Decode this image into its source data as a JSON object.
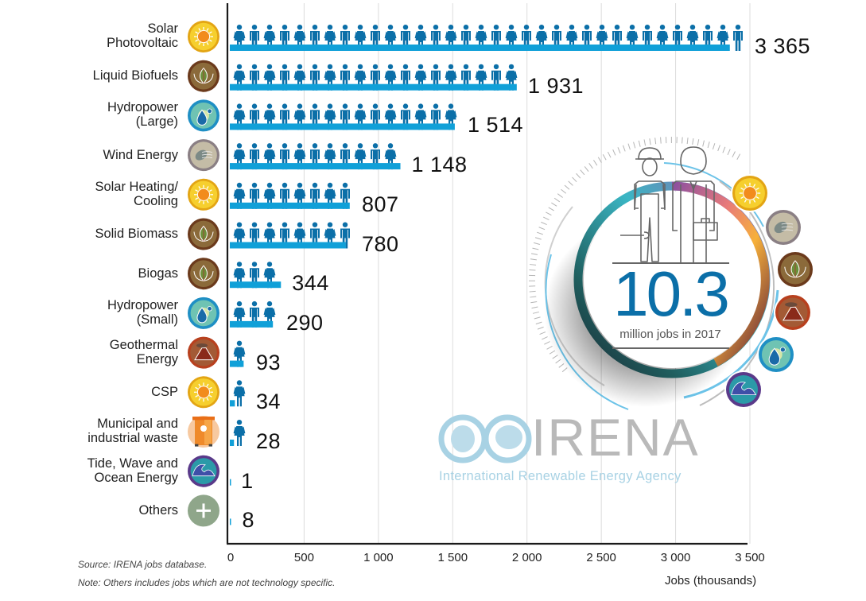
{
  "chart_data": {
    "type": "bar",
    "orientation": "horizontal",
    "title": "",
    "xlabel": "Jobs (thousands)",
    "ylabel": "",
    "xlim": [
      0,
      3500
    ],
    "xticks": [
      0,
      500,
      1000,
      1500,
      2000,
      2500,
      3000,
      3500
    ],
    "xtick_labels": [
      "0",
      "500",
      "1 000",
      "1 500",
      "2 000",
      "2 500",
      "3 000",
      "3 500"
    ],
    "grid": "vertical",
    "categories": [
      "Solar Photovoltaic",
      "Liquid Biofuels",
      "Hydropower (Large)",
      "Wind Energy",
      "Solar Heating/ Cooling",
      "Solid Biomass",
      "Biogas",
      "Hydropower (Small)",
      "Geothermal Energy",
      "CSP",
      "Municipal and industrial waste",
      "Tide, Wave and Ocean Energy",
      "Others"
    ],
    "values": [
      3365,
      1931,
      1514,
      1148,
      807,
      780,
      344,
      290,
      93,
      34,
      28,
      1,
      8
    ],
    "value_labels": [
      "3 365",
      "1 931",
      "1 514",
      "1 148",
      "807",
      "780",
      "344",
      "290",
      "93",
      "34",
      "28",
      "1",
      "8"
    ],
    "pictogram_unit": "one person icon ≈ 100 thousand jobs"
  },
  "rows": [
    {
      "label_lines": [
        "Solar",
        "Photovoltaic"
      ],
      "icon": "sun-icon"
    },
    {
      "label_lines": [
        "Liquid Biofuels"
      ],
      "icon": "leaf-icon"
    },
    {
      "label_lines": [
        "Hydropower",
        "(Large)"
      ],
      "icon": "water-drop-icon"
    },
    {
      "label_lines": [
        "Wind Energy"
      ],
      "icon": "wind-icon"
    },
    {
      "label_lines": [
        "Solar Heating/",
        "Cooling"
      ],
      "icon": "sun-icon"
    },
    {
      "label_lines": [
        "Solid Biomass"
      ],
      "icon": "leaf-icon"
    },
    {
      "label_lines": [
        "Biogas"
      ],
      "icon": "leaf-icon"
    },
    {
      "label_lines": [
        "Hydropower",
        "(Small)"
      ],
      "icon": "water-drop-icon"
    },
    {
      "label_lines": [
        "Geothermal",
        "Energy"
      ],
      "icon": "volcano-icon"
    },
    {
      "label_lines": [
        "CSP"
      ],
      "icon": "sun-icon"
    },
    {
      "label_lines": [
        "Municipal and",
        "industrial waste"
      ],
      "icon": "waste-bin-icon"
    },
    {
      "label_lines": [
        "Tide, Wave and",
        "Ocean Energy"
      ],
      "icon": "wave-icon"
    },
    {
      "label_lines": [
        "Others"
      ],
      "icon": "plus-icon"
    }
  ],
  "headline": {
    "number": "10.3",
    "caption": "million jobs in 2017"
  },
  "ring_icons": [
    "sun-icon",
    "wind-icon",
    "leaf-icon",
    "volcano-icon",
    "water-drop-icon",
    "wave-icon"
  ],
  "logo": {
    "name": "IRENA",
    "tagline": "International Renewable Energy Agency"
  },
  "notes": {
    "source": "Source: IRENA jobs database.",
    "note": "Note: Others includes jobs which are not technology specific."
  },
  "colors": {
    "figure": "#0b6fa8",
    "bar": "#10a0d8",
    "axis": "#1a1a1a",
    "grid": "#dcdcdc",
    "headline": "#0b6fa8",
    "logo_globe": "#a8d2e4",
    "logo_text": "#b9b9b9"
  }
}
